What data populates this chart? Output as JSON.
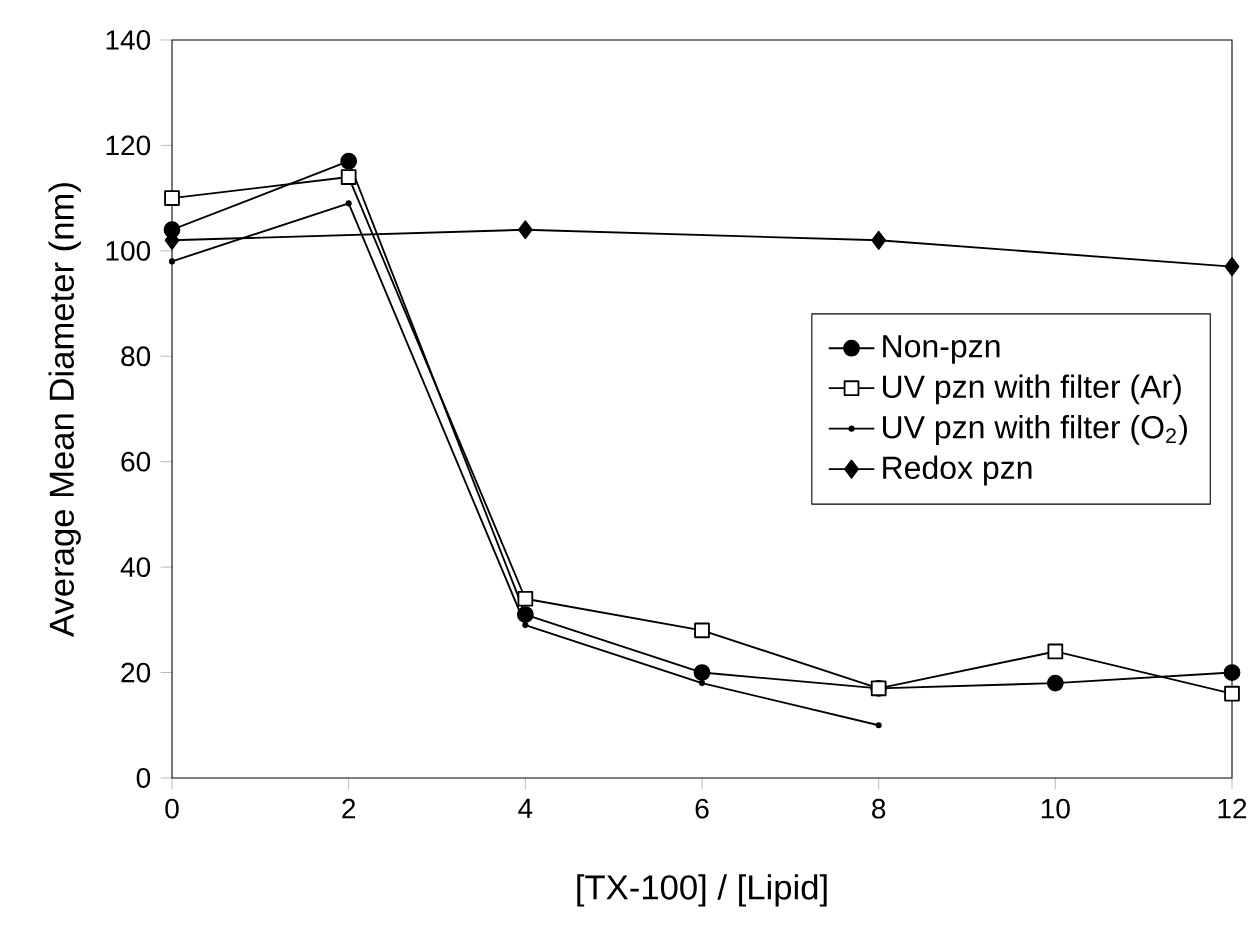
{
  "chart_data": {
    "type": "line",
    "xlabel": "[TX-100] / [Lipid]",
    "ylabel": "Average Mean Diameter (nm)",
    "xlim": [
      0,
      12
    ],
    "ylim": [
      0,
      140
    ],
    "xticks": [
      0,
      2,
      4,
      6,
      8,
      10,
      12
    ],
    "yticks": [
      0,
      20,
      40,
      60,
      80,
      100,
      120,
      140
    ],
    "grid": false,
    "legend": "right",
    "series": [
      {
        "name": "Non-pzn",
        "color": "#000000",
        "marker": "circle",
        "x": [
          0,
          2,
          4,
          6,
          8,
          10,
          12
        ],
        "values": [
          104,
          117,
          31,
          20,
          17,
          18,
          20
        ]
      },
      {
        "name": "UV pzn with filter (Ar)",
        "color": "#000000",
        "marker": "square",
        "x": [
          0,
          2,
          4,
          6,
          8,
          10,
          12
        ],
        "values": [
          110,
          114,
          34,
          28,
          17,
          24,
          16
        ]
      },
      {
        "name": "UV pzn with filter (O$_{2}$)",
        "color": "#000000",
        "marker": "cross",
        "x": [
          0,
          2,
          4,
          6,
          8
        ],
        "values": [
          98,
          109,
          29,
          18,
          10
        ]
      },
      {
        "name": "Redox pzn",
        "color": "#000000",
        "marker": "diamond",
        "x": [
          0,
          4,
          8,
          12
        ],
        "values": [
          102,
          104,
          102,
          97
        ]
      }
    ]
  }
}
